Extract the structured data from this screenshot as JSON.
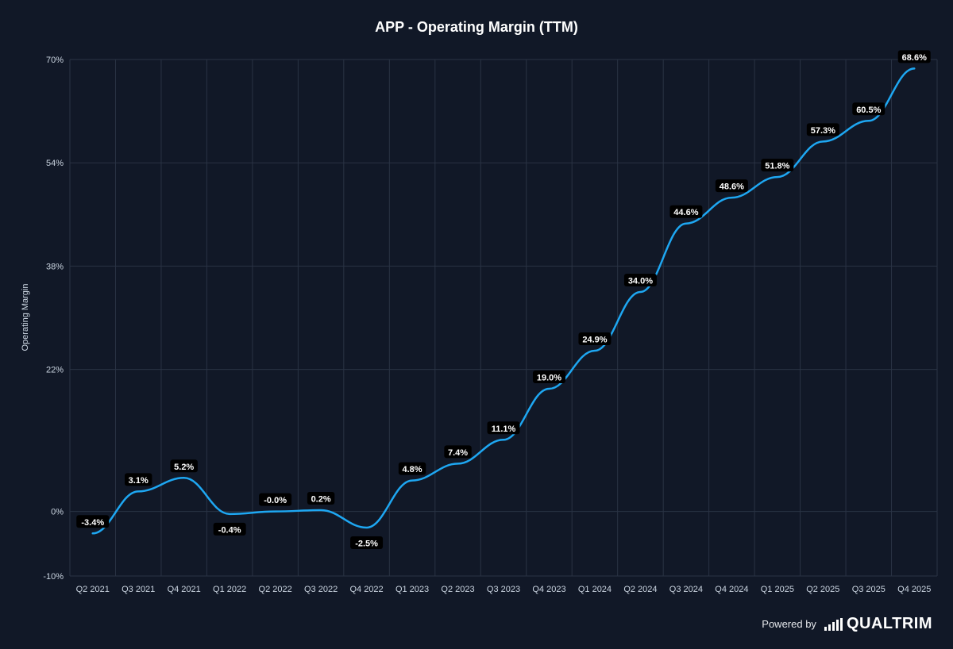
{
  "brand": {
    "powered_by": "Powered by",
    "name": "QUALTRIM",
    "logo_icon": "signal-bars-icon"
  },
  "colors": {
    "background": "#111827",
    "line": "#1ea7f2",
    "grid": "#2a3344",
    "label_bg": "#000000"
  },
  "chart_data": {
    "type": "line",
    "title": "APP - Operating Margin (TTM)",
    "xlabel": "",
    "ylabel": "Operating Margin",
    "categories": [
      "Q2 2021",
      "Q3 2021",
      "Q4 2021",
      "Q1 2022",
      "Q2 2022",
      "Q3 2022",
      "Q4 2022",
      "Q1 2023",
      "Q2 2023",
      "Q3 2023",
      "Q4 2023",
      "Q1 2024",
      "Q2 2024",
      "Q3 2024",
      "Q4 2024",
      "Q1 2025",
      "Q2 2025",
      "Q3 2025",
      "Q4 2025"
    ],
    "series": [
      {
        "values": [
          -3.4,
          3.1,
          5.2,
          -0.4,
          -0.0,
          0.2,
          -2.5,
          4.8,
          7.4,
          11.1,
          19.0,
          24.9,
          34.0,
          44.6,
          48.6,
          51.8,
          57.3,
          60.5,
          68.6
        ],
        "labels": [
          "-3.4%",
          "3.1%",
          "5.2%",
          "-0.4%",
          "-0.0%",
          "0.2%",
          "-2.5%",
          "4.8%",
          "7.4%",
          "11.1%",
          "19.0%",
          "24.9%",
          "34.0%",
          "44.6%",
          "48.6%",
          "51.8%",
          "57.3%",
          "60.5%",
          "68.6%"
        ]
      }
    ],
    "ylim": [
      -10,
      70
    ],
    "yticks": [
      70,
      54,
      38,
      22,
      0,
      -10
    ],
    "ytick_labels": [
      "70%",
      "54%",
      "38%",
      "22%",
      "0%",
      "-10%"
    ],
    "grid": true,
    "legend": "none"
  }
}
